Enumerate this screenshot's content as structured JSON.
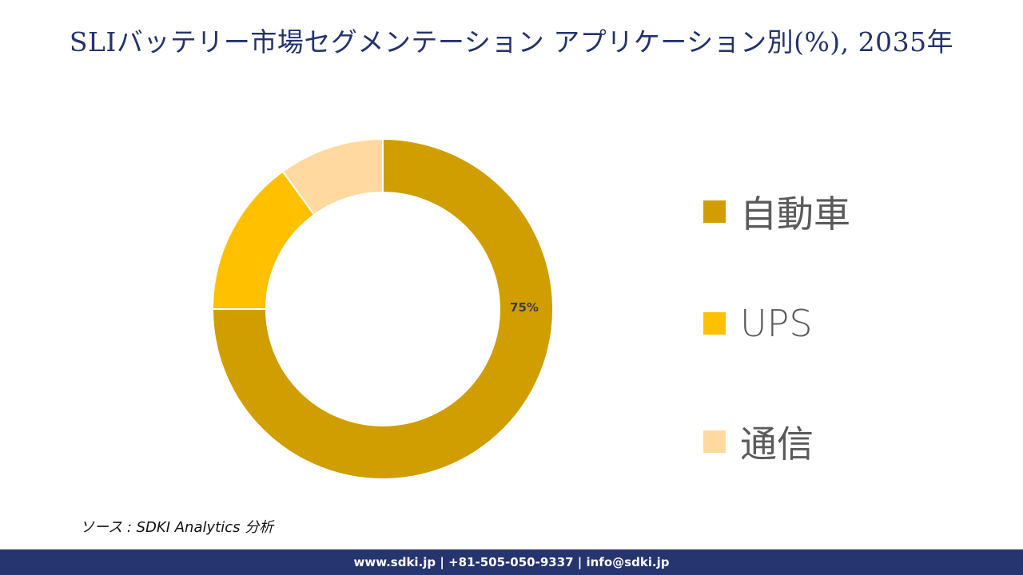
{
  "title": "SLIバッテリー市場セグメンテーション アプリケーション別(%), 2035年",
  "chart_data": {
    "type": "pie",
    "variant": "donut",
    "title": "SLIバッテリー市場セグメンテーション アプリケーション別(%), 2035年",
    "categories": [
      "自動車",
      "UPS",
      "通信"
    ],
    "values": [
      75,
      15,
      10
    ],
    "unit": "%",
    "colors": [
      "#D09E00",
      "#FFC000",
      "#FFD9A0"
    ],
    "data_labels": [
      {
        "category": "自動車",
        "text": "75%"
      }
    ],
    "legend_position": "right",
    "start_angle_deg": 0,
    "direction": "clockwise"
  },
  "legend": {
    "items": [
      {
        "label": "自動車",
        "color": "#D09E00"
      },
      {
        "label": "UPS",
        "color": "#FFC000"
      },
      {
        "label": "通信",
        "color": "#FFD9A0"
      }
    ]
  },
  "source": "ソース : SDKI Analytics 分析",
  "footer": "www.sdki.jp | +81-505-050-9337 | info@sdki.jp"
}
